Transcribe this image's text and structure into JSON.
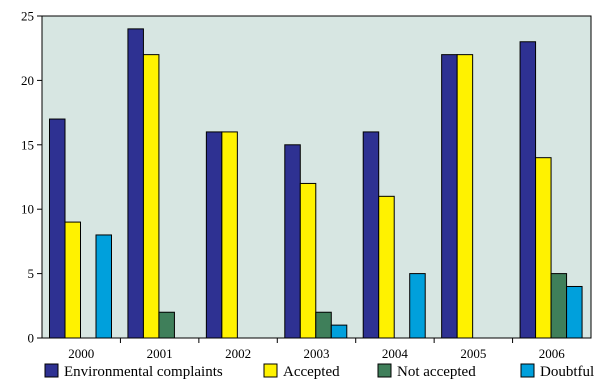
{
  "chart_data": {
    "type": "bar",
    "categories": [
      "2000",
      "2001",
      "2002",
      "2003",
      "2004",
      "2005",
      "2006"
    ],
    "series": [
      {
        "name": "Environmental complaints",
        "values": [
          17,
          24,
          16,
          15,
          16,
          22,
          23
        ],
        "color": "#2e3192"
      },
      {
        "name": "Accepted",
        "values": [
          9,
          22,
          16,
          12,
          11,
          22,
          14
        ],
        "color": "#fff200"
      },
      {
        "name": "Not accepted",
        "values": [
          0,
          2,
          0,
          2,
          0,
          0,
          5
        ],
        "color": "#3f7f5a"
      },
      {
        "name": "Doubtful",
        "values": [
          8,
          0,
          0,
          1,
          5,
          0,
          4
        ],
        "color": "#00a0dc"
      }
    ],
    "yticks": [
      "0",
      "5",
      "10",
      "15",
      "20",
      "25"
    ],
    "ylim": [
      0,
      25
    ],
    "grid": false,
    "legend_position": "bottom",
    "plot_background": "#d7e6e2",
    "title": "",
    "xlabel": "",
    "ylabel": ""
  }
}
